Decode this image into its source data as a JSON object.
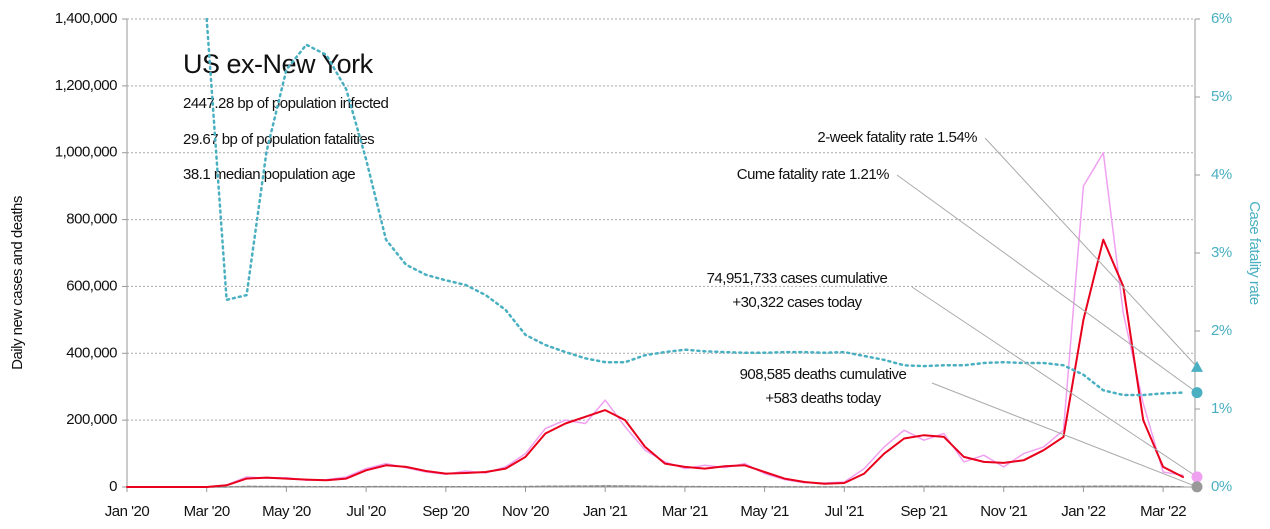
{
  "chart_data": {
    "type": "line",
    "info": {
      "title": "US ex-New York",
      "lines": [
        "2447.28 bp of population infected",
        "29.67 bp of population fatalities",
        "38.1 median population age"
      ]
    },
    "ylabel": "Daily new cases and deaths",
    "y2label": "Case fatality rate",
    "xlim": [
      0,
      26.8
    ],
    "xticks": [
      {
        "value": 0,
        "label": "Jan '20"
      },
      {
        "value": 2,
        "label": "Mar '20"
      },
      {
        "value": 4,
        "label": "May '20"
      },
      {
        "value": 6,
        "label": "Jul '20"
      },
      {
        "value": 8,
        "label": "Sep '20"
      },
      {
        "value": 10,
        "label": "Nov '20"
      },
      {
        "value": 12,
        "label": "Jan '21"
      },
      {
        "value": 14,
        "label": "Mar '21"
      },
      {
        "value": 16,
        "label": "May '21"
      },
      {
        "value": 18,
        "label": "Jul '21"
      },
      {
        "value": 20,
        "label": "Sep '21"
      },
      {
        "value": 22,
        "label": "Nov '21"
      },
      {
        "value": 24,
        "label": "Jan '22"
      },
      {
        "value": 26,
        "label": "Mar '22"
      }
    ],
    "ylim": [
      0,
      1400000
    ],
    "yticks": [
      0,
      {
        "value": 200000,
        "label": "200,000"
      },
      {
        "value": 400000,
        "label": "400,000"
      },
      {
        "value": 600000,
        "label": "600,000"
      },
      {
        "value": 800000,
        "label": "800,000"
      },
      {
        "value": 1000000,
        "label": "1,000,000"
      },
      {
        "value": 1200000,
        "label": "1,200,000"
      },
      {
        "value": 1400000,
        "label": "1,400,000"
      }
    ],
    "y2lim": [
      0,
      6
    ],
    "y2ticks": [
      {
        "value": 0,
        "label": "0%"
      },
      {
        "value": 1,
        "label": "1%"
      },
      {
        "value": 2,
        "label": "2%"
      },
      {
        "value": 3,
        "label": "3%"
      },
      {
        "value": 4,
        "label": "4%"
      },
      {
        "value": 5,
        "label": "5%"
      },
      {
        "value": 6,
        "label": "6%"
      }
    ],
    "grid": true,
    "x": [
      0,
      0.5,
      1,
      1.5,
      2,
      2.5,
      3,
      3.5,
      4,
      4.5,
      5,
      5.5,
      6,
      6.5,
      7,
      7.5,
      8,
      8.5,
      9,
      9.5,
      10,
      10.5,
      11,
      11.5,
      12,
      12.5,
      13,
      13.5,
      14,
      14.5,
      15,
      15.5,
      16,
      16.5,
      17,
      17.5,
      18,
      18.5,
      19,
      19.5,
      20,
      20.5,
      21,
      21.5,
      22,
      22.5,
      23,
      23.5,
      24,
      24.5,
      25,
      25.5,
      26,
      26.5
    ],
    "series": [
      {
        "color": "#f0a0f0",
        "width": 1.5,
        "dash": "",
        "values": [
          0,
          0,
          0,
          0,
          0,
          6000,
          30000,
          26000,
          28000,
          20000,
          22000,
          30000,
          55000,
          70000,
          58000,
          45000,
          38000,
          48000,
          42000,
          60000,
          100000,
          175000,
          200000,
          190000,
          260000,
          180000,
          110000,
          75000,
          55000,
          65000,
          58000,
          70000,
          40000,
          22000,
          13000,
          12000,
          15000,
          55000,
          120000,
          170000,
          140000,
          160000,
          75000,
          95000,
          60000,
          100000,
          120000,
          170000,
          900000,
          1000000,
          520000,
          250000,
          45000,
          35000
        ]
      },
      {
        "color": "#888888",
        "width": 1.5,
        "dash": "4 2",
        "values": [
          0,
          0,
          0,
          0,
          0,
          100,
          1800,
          1500,
          1200,
          900,
          700,
          800,
          900,
          1100,
          1000,
          900,
          800,
          750,
          800,
          850,
          1300,
          2000,
          2500,
          2800,
          3300,
          3000,
          2200,
          1600,
          1200,
          800,
          700,
          700,
          600,
          400,
          300,
          250,
          300,
          500,
          1000,
          1500,
          1800,
          1900,
          1400,
          1100,
          1000,
          1200,
          1400,
          1600,
          1900,
          2400,
          2500,
          2100,
          1300,
          600
        ]
      },
      {
        "color": "#e8001c",
        "width": 2,
        "dash": "",
        "values": [
          0,
          0,
          0,
          0,
          0,
          5000,
          25000,
          28000,
          25000,
          22000,
          20000,
          25000,
          50000,
          65000,
          60000,
          48000,
          40000,
          42000,
          45000,
          55000,
          90000,
          160000,
          190000,
          210000,
          230000,
          200000,
          120000,
          70000,
          60000,
          55000,
          62000,
          65000,
          45000,
          25000,
          15000,
          10000,
          12000,
          40000,
          100000,
          145000,
          155000,
          150000,
          90000,
          75000,
          72000,
          80000,
          110000,
          150000,
          500000,
          740000,
          600000,
          200000,
          60000,
          30000
        ]
      },
      {
        "color": "#4ab0c1",
        "width": 2.5,
        "dash": "2 4",
        "axis": "y2",
        "values": [
          null,
          null,
          null,
          null,
          6,
          2.4,
          2.46,
          4.3,
          5.35,
          5.67,
          5.54,
          5.1,
          4.2,
          3.17,
          2.85,
          2.72,
          2.65,
          2.59,
          2.46,
          2.27,
          1.95,
          1.82,
          1.73,
          1.65,
          1.6,
          1.6,
          1.69,
          1.73,
          1.76,
          1.74,
          1.73,
          1.72,
          1.72,
          1.73,
          1.73,
          1.72,
          1.73,
          1.68,
          1.63,
          1.56,
          1.55,
          1.56,
          1.56,
          1.59,
          1.6,
          1.59,
          1.59,
          1.56,
          1.44,
          1.24,
          1.18,
          1.18,
          1.2,
          1.21
        ]
      }
    ],
    "markers": [
      {
        "value": 1.54,
        "axis": "y2",
        "shape": "triangle",
        "color": "#4ab0c1"
      },
      {
        "value": 1.21,
        "axis": "y2",
        "shape": "circle",
        "color": "#4ab0c1"
      },
      {
        "value": 30322,
        "shape": "circle",
        "color": "#f0a0f0"
      },
      {
        "value": 583,
        "shape": "circle",
        "color": "#999999"
      }
    ],
    "annotations": [
      {
        "text": [
          "2-week fatality rate 1.54%"
        ],
        "marker": 0
      },
      {
        "text": [
          "Cume fatality rate 1.21%"
        ],
        "marker": 1
      },
      {
        "text": [
          "74,951,733 cases cumulative",
          "+30,322 cases today"
        ],
        "marker": 2
      },
      {
        "text": [
          "908,585 deaths cumulative",
          "+583 deaths today"
        ],
        "marker": 3
      }
    ]
  }
}
